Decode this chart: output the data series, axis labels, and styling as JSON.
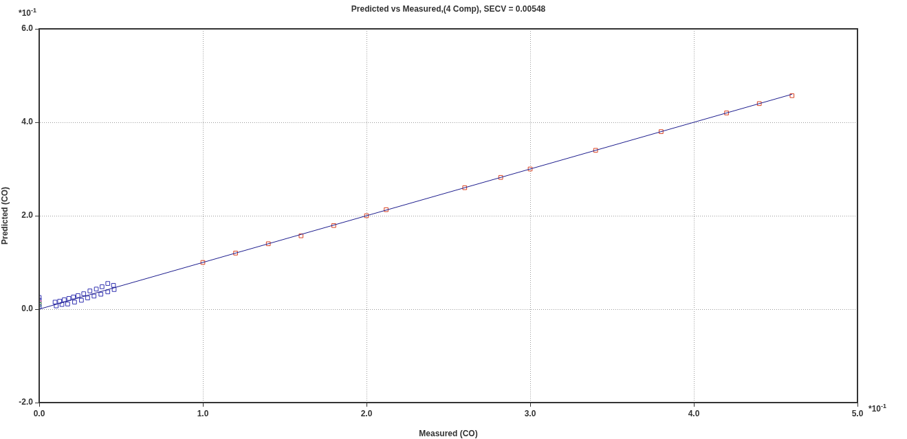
{
  "chart_data": {
    "type": "scatter",
    "title": "Predicted vs Measured,(4 Comp), SECV = 0.00548",
    "xlabel": "Measured (CO)",
    "ylabel": "Predicted (CO)",
    "xlim": [
      0,
      5.0
    ],
    "ylim": [
      -2.0,
      6.0
    ],
    "xticks": [
      {
        "value": 0,
        "label": "0.0"
      },
      {
        "value": 1,
        "label": "1.0"
      },
      {
        "value": 2,
        "label": "2.0"
      },
      {
        "value": 3,
        "label": "3.0"
      },
      {
        "value": 4,
        "label": "4.0"
      },
      {
        "value": 5,
        "label": "5.0"
      }
    ],
    "yticks": [
      {
        "value": -2,
        "label": "-2.0"
      },
      {
        "value": 0,
        "label": "0.0"
      },
      {
        "value": 2,
        "label": "2.0"
      },
      {
        "value": 4,
        "label": "4.0"
      },
      {
        "value": 6,
        "label": "6.0"
      }
    ],
    "grid": true,
    "legend": false,
    "marker": "square",
    "annotations": [
      "*10$^{-1}$",
      "*10$^{-1}$"
    ],
    "series": [
      {
        "type": "line",
        "marker": "none",
        "color": "#1a1a8c",
        "x": [
          0,
          4.6
        ],
        "values": [
          0,
          4.6
        ]
      },
      {
        "color": "#3030b0",
        "x": [
          0.097,
          0.125,
          0.153,
          0.181,
          0.209,
          0.237,
          0.272,
          0.31,
          0.349,
          0.384,
          0.419,
          0.454,
          0.104,
          0.139,
          0.174,
          0.216,
          0.258,
          0.296,
          0.335,
          0.377,
          0.419,
          0.458
        ],
        "values": [
          0.15,
          0.17,
          0.2,
          0.23,
          0.26,
          0.29,
          0.33,
          0.39,
          0.43,
          0.48,
          0.55,
          0.51,
          0.07,
          0.1,
          0.11,
          0.15,
          0.19,
          0.24,
          0.28,
          0.32,
          0.37,
          0.42
        ]
      },
      {
        "color": "#d84020",
        "x": [
          1.0,
          1.2,
          1.4,
          1.6,
          1.8,
          2.0,
          2.12,
          2.6,
          2.82,
          3.0,
          3.4,
          3.8,
          4.2,
          4.4,
          4.6
        ],
        "values": [
          1.0,
          1.2,
          1.4,
          1.57,
          1.79,
          2.0,
          2.13,
          2.6,
          2.82,
          3.0,
          3.4,
          3.8,
          4.2,
          4.4,
          4.57
        ]
      },
      {
        "colors": [
          "#3030b0",
          "#3030b0",
          "#e06080",
          "#20a050",
          "#3030b0"
        ],
        "x": [
          0,
          0,
          0,
          0,
          0
        ],
        "values": [
          0.25,
          0.19,
          0.14,
          0.1,
          0.05
        ]
      }
    ]
  }
}
